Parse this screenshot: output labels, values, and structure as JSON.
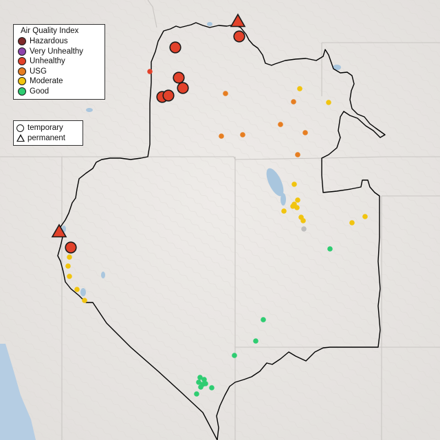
{
  "legend": {
    "title": "Air Quality Index",
    "categories": [
      {
        "label": "Hazardous",
        "color": "#7e2a2a"
      },
      {
        "label": "Very Unhealthy",
        "color": "#8e44ad"
      },
      {
        "label": "Unhealthy",
        "color": "#e2422b"
      },
      {
        "label": "USG",
        "color": "#e67e22"
      },
      {
        "label": "Moderate",
        "color": "#f1c40f"
      },
      {
        "label": "Good",
        "color": "#2ecc71"
      }
    ],
    "shapes": {
      "temporary": "temporary",
      "permanent": "permanent"
    }
  },
  "colors": {
    "land": "#e9e6e3",
    "state_line": "#c9c6c3",
    "boundary": "#000000",
    "water": "#a9c6de",
    "no_data": "#bdbdbd"
  },
  "monitors": [
    {
      "name": "large-red-1",
      "aqi": "Unhealthy",
      "type": "permanent"
    },
    {
      "name": "large-red-2",
      "aqi": "Unhealthy",
      "type": "temporary"
    },
    {
      "name": "large-red-3",
      "aqi": "Unhealthy",
      "type": "temporary"
    },
    {
      "name": "large-red-4",
      "aqi": "Unhealthy",
      "type": "temporary"
    },
    {
      "name": "large-red-5",
      "aqi": "Unhealthy",
      "type": "temporary"
    },
    {
      "name": "large-red-6",
      "aqi": "Unhealthy",
      "type": "temporary"
    },
    {
      "name": "large-red-7",
      "aqi": "Unhealthy",
      "type": "temporary"
    },
    {
      "name": "large-red-8",
      "aqi": "Unhealthy",
      "type": "permanent"
    },
    {
      "name": "large-red-9",
      "aqi": "Unhealthy",
      "type": "temporary"
    }
  ]
}
